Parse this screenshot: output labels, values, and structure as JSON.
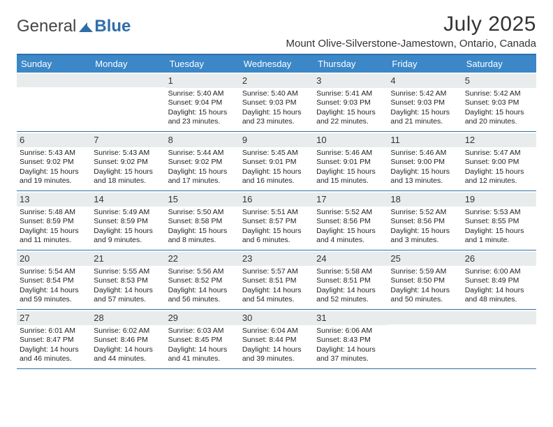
{
  "brand": {
    "word1": "General",
    "word2": "Blue",
    "accent_color": "#2e6ea8"
  },
  "title": "July 2025",
  "location": "Mount Olive-Silverstone-Jamestown, Ontario, Canada",
  "colors": {
    "header_bg": "#3b87c8",
    "daynum_band_bg": "#e9eced",
    "divider": "#2e6ea8",
    "text": "#222222"
  },
  "days_of_week": [
    "Sunday",
    "Monday",
    "Tuesday",
    "Wednesday",
    "Thursday",
    "Friday",
    "Saturday"
  ],
  "weeks": [
    [
      {
        "blank": true
      },
      {
        "blank": true
      },
      {
        "num": "1",
        "sunrise": "Sunrise: 5:40 AM",
        "sunset": "Sunset: 9:04 PM",
        "daylight": "Daylight: 15 hours and 23 minutes."
      },
      {
        "num": "2",
        "sunrise": "Sunrise: 5:40 AM",
        "sunset": "Sunset: 9:03 PM",
        "daylight": "Daylight: 15 hours and 23 minutes."
      },
      {
        "num": "3",
        "sunrise": "Sunrise: 5:41 AM",
        "sunset": "Sunset: 9:03 PM",
        "daylight": "Daylight: 15 hours and 22 minutes."
      },
      {
        "num": "4",
        "sunrise": "Sunrise: 5:42 AM",
        "sunset": "Sunset: 9:03 PM",
        "daylight": "Daylight: 15 hours and 21 minutes."
      },
      {
        "num": "5",
        "sunrise": "Sunrise: 5:42 AM",
        "sunset": "Sunset: 9:03 PM",
        "daylight": "Daylight: 15 hours and 20 minutes."
      }
    ],
    [
      {
        "num": "6",
        "sunrise": "Sunrise: 5:43 AM",
        "sunset": "Sunset: 9:02 PM",
        "daylight": "Daylight: 15 hours and 19 minutes."
      },
      {
        "num": "7",
        "sunrise": "Sunrise: 5:43 AM",
        "sunset": "Sunset: 9:02 PM",
        "daylight": "Daylight: 15 hours and 18 minutes."
      },
      {
        "num": "8",
        "sunrise": "Sunrise: 5:44 AM",
        "sunset": "Sunset: 9:02 PM",
        "daylight": "Daylight: 15 hours and 17 minutes."
      },
      {
        "num": "9",
        "sunrise": "Sunrise: 5:45 AM",
        "sunset": "Sunset: 9:01 PM",
        "daylight": "Daylight: 15 hours and 16 minutes."
      },
      {
        "num": "10",
        "sunrise": "Sunrise: 5:46 AM",
        "sunset": "Sunset: 9:01 PM",
        "daylight": "Daylight: 15 hours and 15 minutes."
      },
      {
        "num": "11",
        "sunrise": "Sunrise: 5:46 AM",
        "sunset": "Sunset: 9:00 PM",
        "daylight": "Daylight: 15 hours and 13 minutes."
      },
      {
        "num": "12",
        "sunrise": "Sunrise: 5:47 AM",
        "sunset": "Sunset: 9:00 PM",
        "daylight": "Daylight: 15 hours and 12 minutes."
      }
    ],
    [
      {
        "num": "13",
        "sunrise": "Sunrise: 5:48 AM",
        "sunset": "Sunset: 8:59 PM",
        "daylight": "Daylight: 15 hours and 11 minutes."
      },
      {
        "num": "14",
        "sunrise": "Sunrise: 5:49 AM",
        "sunset": "Sunset: 8:59 PM",
        "daylight": "Daylight: 15 hours and 9 minutes."
      },
      {
        "num": "15",
        "sunrise": "Sunrise: 5:50 AM",
        "sunset": "Sunset: 8:58 PM",
        "daylight": "Daylight: 15 hours and 8 minutes."
      },
      {
        "num": "16",
        "sunrise": "Sunrise: 5:51 AM",
        "sunset": "Sunset: 8:57 PM",
        "daylight": "Daylight: 15 hours and 6 minutes."
      },
      {
        "num": "17",
        "sunrise": "Sunrise: 5:52 AM",
        "sunset": "Sunset: 8:56 PM",
        "daylight": "Daylight: 15 hours and 4 minutes."
      },
      {
        "num": "18",
        "sunrise": "Sunrise: 5:52 AM",
        "sunset": "Sunset: 8:56 PM",
        "daylight": "Daylight: 15 hours and 3 minutes."
      },
      {
        "num": "19",
        "sunrise": "Sunrise: 5:53 AM",
        "sunset": "Sunset: 8:55 PM",
        "daylight": "Daylight: 15 hours and 1 minute."
      }
    ],
    [
      {
        "num": "20",
        "sunrise": "Sunrise: 5:54 AM",
        "sunset": "Sunset: 8:54 PM",
        "daylight": "Daylight: 14 hours and 59 minutes."
      },
      {
        "num": "21",
        "sunrise": "Sunrise: 5:55 AM",
        "sunset": "Sunset: 8:53 PM",
        "daylight": "Daylight: 14 hours and 57 minutes."
      },
      {
        "num": "22",
        "sunrise": "Sunrise: 5:56 AM",
        "sunset": "Sunset: 8:52 PM",
        "daylight": "Daylight: 14 hours and 56 minutes."
      },
      {
        "num": "23",
        "sunrise": "Sunrise: 5:57 AM",
        "sunset": "Sunset: 8:51 PM",
        "daylight": "Daylight: 14 hours and 54 minutes."
      },
      {
        "num": "24",
        "sunrise": "Sunrise: 5:58 AM",
        "sunset": "Sunset: 8:51 PM",
        "daylight": "Daylight: 14 hours and 52 minutes."
      },
      {
        "num": "25",
        "sunrise": "Sunrise: 5:59 AM",
        "sunset": "Sunset: 8:50 PM",
        "daylight": "Daylight: 14 hours and 50 minutes."
      },
      {
        "num": "26",
        "sunrise": "Sunrise: 6:00 AM",
        "sunset": "Sunset: 8:49 PM",
        "daylight": "Daylight: 14 hours and 48 minutes."
      }
    ],
    [
      {
        "num": "27",
        "sunrise": "Sunrise: 6:01 AM",
        "sunset": "Sunset: 8:47 PM",
        "daylight": "Daylight: 14 hours and 46 minutes."
      },
      {
        "num": "28",
        "sunrise": "Sunrise: 6:02 AM",
        "sunset": "Sunset: 8:46 PM",
        "daylight": "Daylight: 14 hours and 44 minutes."
      },
      {
        "num": "29",
        "sunrise": "Sunrise: 6:03 AM",
        "sunset": "Sunset: 8:45 PM",
        "daylight": "Daylight: 14 hours and 41 minutes."
      },
      {
        "num": "30",
        "sunrise": "Sunrise: 6:04 AM",
        "sunset": "Sunset: 8:44 PM",
        "daylight": "Daylight: 14 hours and 39 minutes."
      },
      {
        "num": "31",
        "sunrise": "Sunrise: 6:06 AM",
        "sunset": "Sunset: 8:43 PM",
        "daylight": "Daylight: 14 hours and 37 minutes."
      },
      {
        "blank": true
      },
      {
        "blank": true
      }
    ]
  ]
}
